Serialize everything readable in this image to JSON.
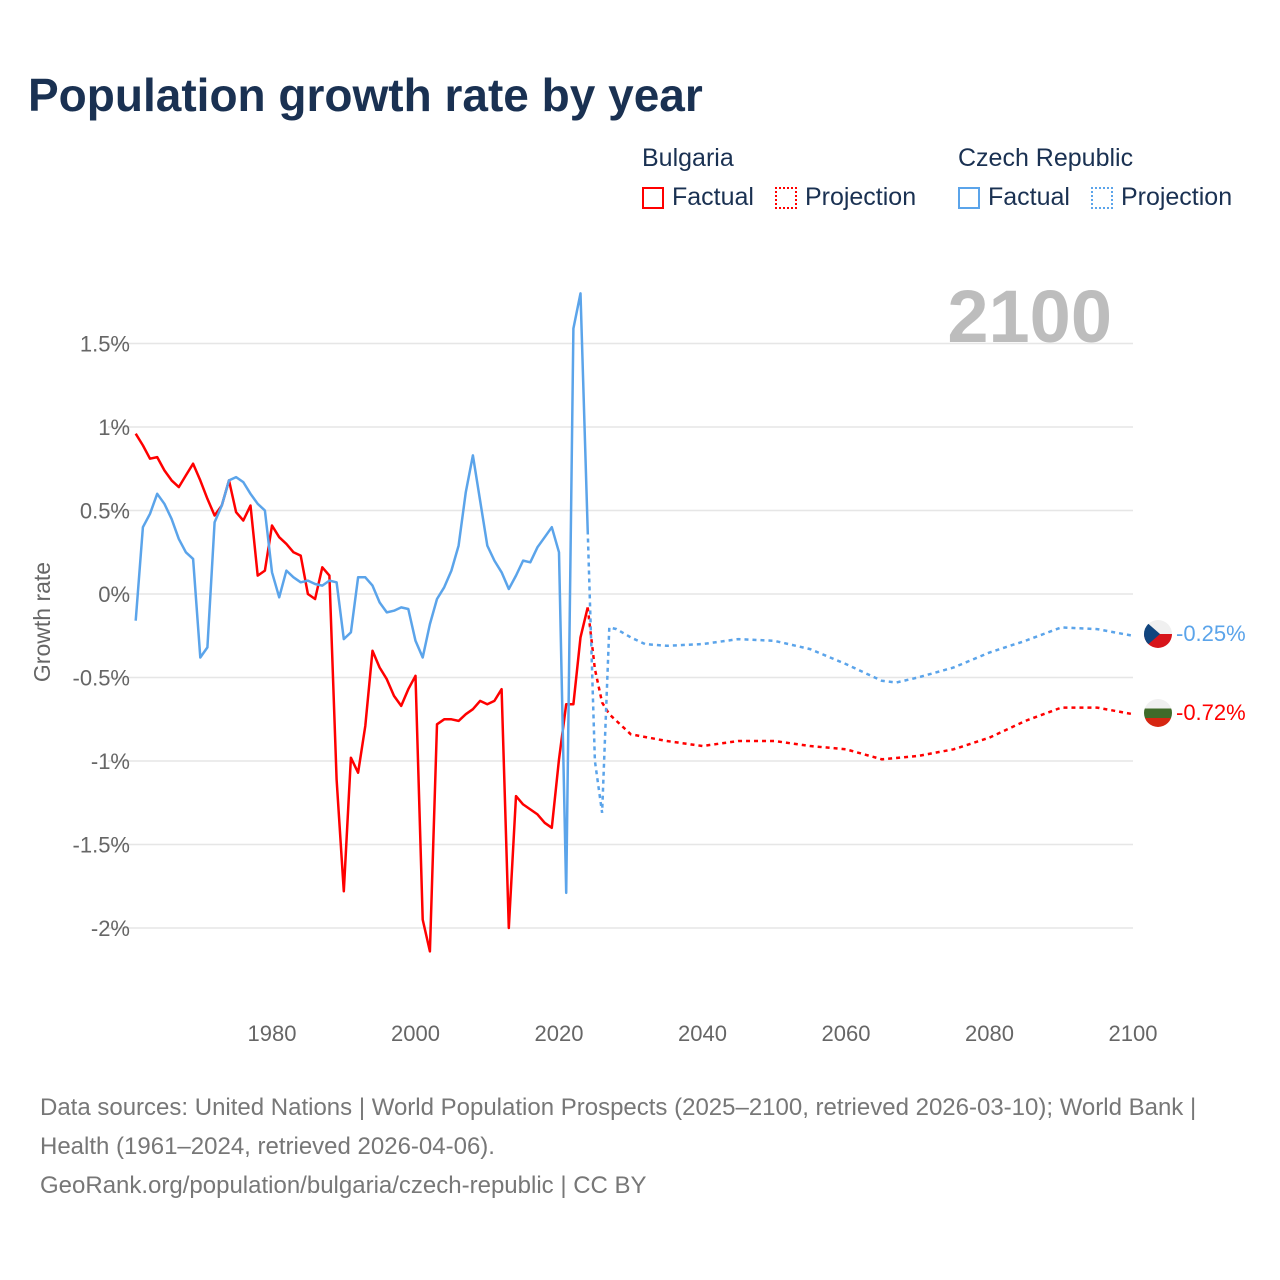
{
  "title": "Population growth rate by year",
  "legend": {
    "groups": [
      {
        "name": "Bulgaria",
        "color": "#ff0000",
        "factual": "Factual",
        "projection": "Projection"
      },
      {
        "name": "Czech Republic",
        "color": "#5ba4ea",
        "factual": "Factual",
        "projection": "Projection"
      }
    ]
  },
  "year_label": "2100",
  "source": {
    "line1": "Data sources: United Nations | World Population Prospects (2025–2100, retrieved 2026-03-10); World Bank | Health (1961–2024, retrieved 2026-04-06).",
    "line2": "GeoRank.org/population/bulgaria/czech-republic | CC BY"
  },
  "chart_data": {
    "type": "line",
    "title": "Population growth rate by year",
    "xlabel": "",
    "ylabel": "Growth rate",
    "xlim": [
      1961,
      2100
    ],
    "ylim": [
      -2.4,
      2.0
    ],
    "x_ticks": [
      1980,
      2000,
      2020,
      2040,
      2060,
      2080,
      2100
    ],
    "y_ticks": [
      1.5,
      1,
      0.5,
      0,
      -0.5,
      -1,
      -1.5,
      -2
    ],
    "y_tick_labels": [
      "1.5%",
      "1%",
      "0.5%",
      "0%",
      "-0.5%",
      "-1%",
      "-1.5%",
      "-2%"
    ],
    "grid": true,
    "legend_position": "top-right",
    "series": [
      {
        "name": "Bulgaria",
        "color": "#ff0000",
        "end_label": "-0.72%",
        "factual": {
          "x": [
            1961,
            1962,
            1963,
            1964,
            1965,
            1966,
            1967,
            1968,
            1969,
            1970,
            1971,
            1972,
            1973,
            1974,
            1975,
            1976,
            1977,
            1978,
            1979,
            1980,
            1981,
            1982,
            1983,
            1984,
            1985,
            1986,
            1987,
            1988,
            1989,
            1990,
            1991,
            1992,
            1993,
            1994,
            1995,
            1996,
            1997,
            1998,
            1999,
            2000,
            2001,
            2002,
            2003,
            2004,
            2005,
            2006,
            2007,
            2008,
            2009,
            2010,
            2011,
            2012,
            2013,
            2014,
            2015,
            2016,
            2017,
            2018,
            2019,
            2020,
            2021,
            2022,
            2023,
            2024
          ],
          "y": [
            0.96,
            0.89,
            0.81,
            0.82,
            0.74,
            0.68,
            0.64,
            0.71,
            0.78,
            0.68,
            0.57,
            0.47,
            0.53,
            0.68,
            0.49,
            0.44,
            0.53,
            0.11,
            0.14,
            0.41,
            0.34,
            0.3,
            0.25,
            0.23,
            0.0,
            -0.03,
            0.16,
            0.11,
            -1.11,
            -1.78,
            -0.98,
            -1.07,
            -0.79,
            -0.34,
            -0.44,
            -0.51,
            -0.61,
            -0.67,
            -0.57,
            -0.49,
            -1.95,
            -2.14,
            -0.78,
            -0.75,
            -0.75,
            -0.76,
            -0.72,
            -0.69,
            -0.64,
            -0.66,
            -0.64,
            -0.57,
            -2.0,
            -1.21,
            -1.26,
            -1.29,
            -1.32,
            -1.37,
            -1.4,
            -0.99,
            -0.66,
            -0.66,
            -0.26,
            -0.08
          ]
        },
        "projection": {
          "x": [
            2024,
            2025,
            2026,
            2027,
            2030,
            2035,
            2040,
            2045,
            2050,
            2055,
            2060,
            2065,
            2070,
            2075,
            2080,
            2085,
            2090,
            2095,
            2100
          ],
          "y": [
            -0.08,
            -0.45,
            -0.65,
            -0.72,
            -0.84,
            -0.88,
            -0.91,
            -0.88,
            -0.88,
            -0.91,
            -0.93,
            -0.99,
            -0.97,
            -0.93,
            -0.86,
            -0.76,
            -0.68,
            -0.68,
            -0.72
          ]
        }
      },
      {
        "name": "Czech Republic",
        "color": "#5ba4ea",
        "end_label": "-0.25%",
        "factual": {
          "x": [
            1961,
            1962,
            1963,
            1964,
            1965,
            1966,
            1967,
            1968,
            1969,
            1970,
            1971,
            1972,
            1973,
            1974,
            1975,
            1976,
            1977,
            1978,
            1979,
            1980,
            1981,
            1982,
            1983,
            1984,
            1985,
            1986,
            1987,
            1988,
            1989,
            1990,
            1991,
            1992,
            1993,
            1994,
            1995,
            1996,
            1997,
            1998,
            1999,
            2000,
            2001,
            2002,
            2003,
            2004,
            2005,
            2006,
            2007,
            2008,
            2009,
            2010,
            2011,
            2012,
            2013,
            2014,
            2015,
            2016,
            2017,
            2018,
            2019,
            2020,
            2021,
            2022,
            2023,
            2024
          ],
          "y": [
            -0.16,
            0.4,
            0.48,
            0.6,
            0.54,
            0.45,
            0.33,
            0.25,
            0.21,
            -0.38,
            -0.32,
            0.43,
            0.53,
            0.68,
            0.7,
            0.67,
            0.6,
            0.54,
            0.5,
            0.13,
            -0.02,
            0.14,
            0.1,
            0.07,
            0.08,
            0.06,
            0.05,
            0.08,
            0.07,
            -0.27,
            -0.23,
            0.1,
            0.1,
            0.05,
            -0.05,
            -0.11,
            -0.1,
            -0.08,
            -0.09,
            -0.28,
            -0.38,
            -0.18,
            -0.03,
            0.04,
            0.14,
            0.29,
            0.61,
            0.83,
            0.56,
            0.29,
            0.2,
            0.13,
            0.03,
            0.11,
            0.2,
            0.19,
            0.28,
            0.34,
            0.4,
            0.25,
            -1.79,
            1.59,
            1.8,
            0.38
          ]
        },
        "projection": {
          "x": [
            2024,
            2025,
            2026,
            2027,
            2028,
            2030,
            2032,
            2035,
            2040,
            2045,
            2050,
            2055,
            2060,
            2065,
            2067,
            2070,
            2075,
            2080,
            2085,
            2090,
            2095,
            2100
          ],
          "y": [
            0.38,
            -1.0,
            -1.31,
            -0.2,
            -0.21,
            -0.26,
            -0.3,
            -0.31,
            -0.3,
            -0.27,
            -0.28,
            -0.33,
            -0.42,
            -0.52,
            -0.53,
            -0.5,
            -0.44,
            -0.35,
            -0.28,
            -0.2,
            -0.21,
            -0.25
          ]
        }
      }
    ]
  }
}
